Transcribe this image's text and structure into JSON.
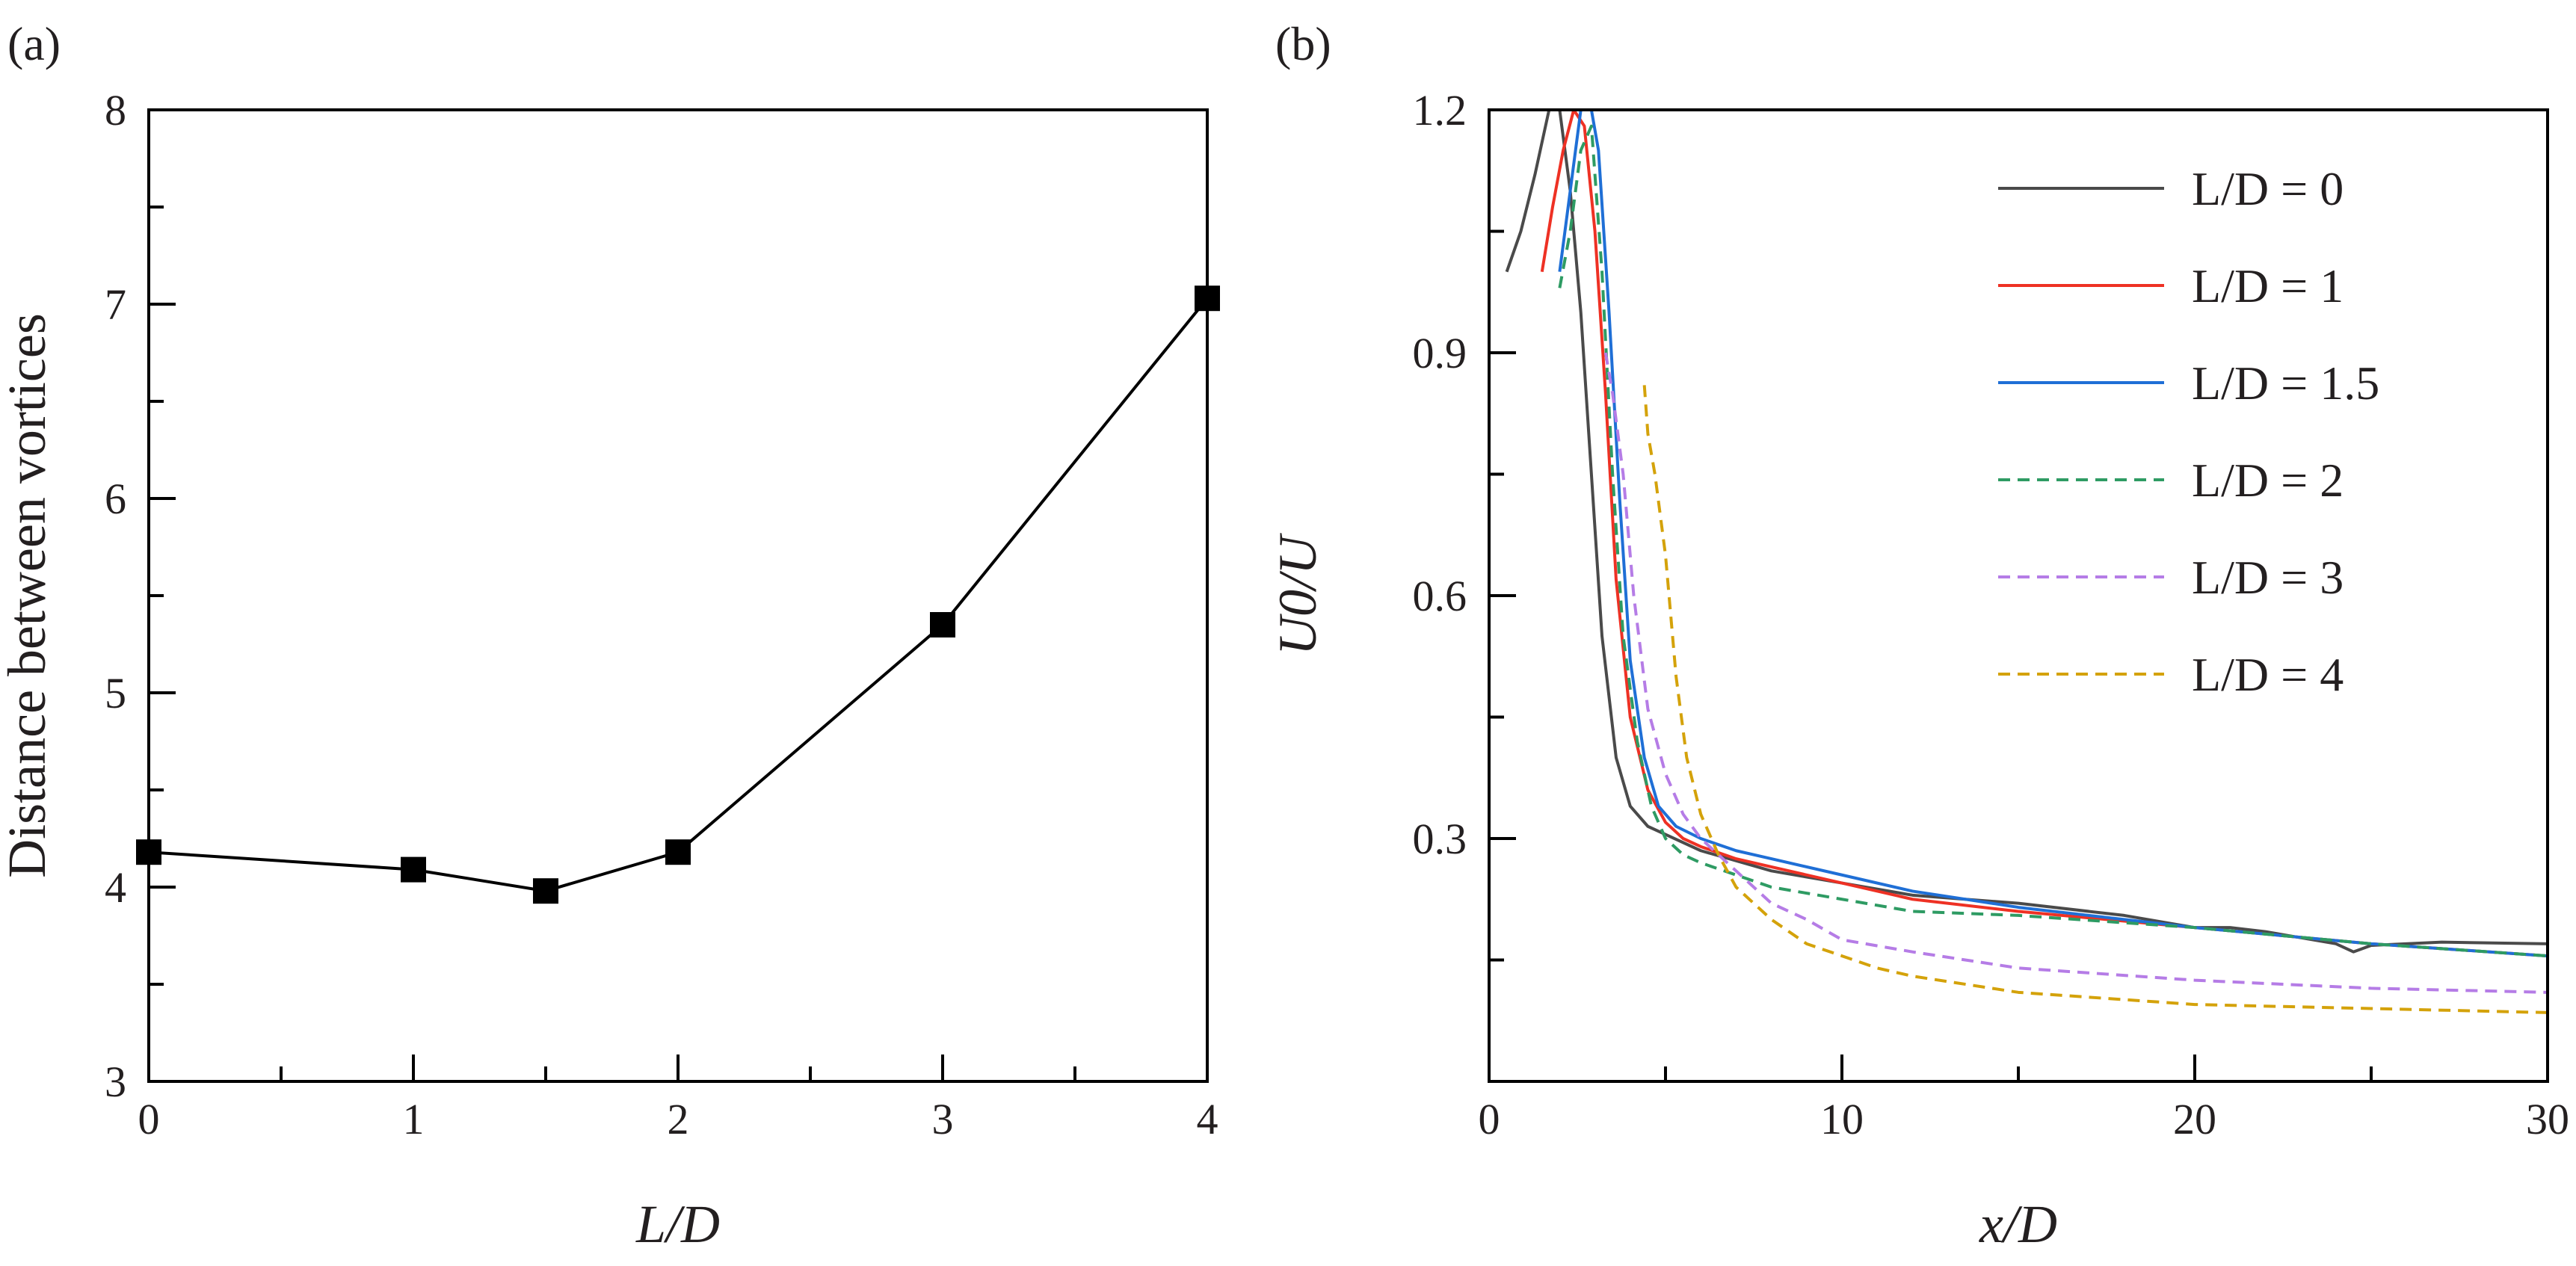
{
  "chart_data": [
    {
      "panel_label": "(a)",
      "type": "line",
      "xlabel": "L/D",
      "ylabel": "Distance between vortices",
      "xlim": [
        0,
        4
      ],
      "ylim": [
        3,
        8
      ],
      "x_ticks": [
        "0",
        "1",
        "2",
        "3",
        "4"
      ],
      "y_ticks": [
        "3",
        "4",
        "5",
        "6",
        "7",
        "8"
      ],
      "grid": false,
      "marker": "filled-square",
      "series": [
        {
          "x": [
            0,
            1,
            1.5,
            2,
            3,
            4
          ],
          "y": [
            4.18,
            4.09,
            3.98,
            4.18,
            5.35,
            7.03
          ],
          "color": "#000000"
        }
      ]
    },
    {
      "panel_label": "(b)",
      "type": "line",
      "xlabel": "x/D",
      "ylabel": "U0/U",
      "xlim": [
        0,
        30
      ],
      "ylim": [
        0,
        1.2
      ],
      "x_ticks": [
        "0",
        "10",
        "20",
        "30"
      ],
      "y_ticks": [
        "0.3",
        "0.6",
        "0.9",
        "1.2"
      ],
      "grid": false,
      "legend_position": "top-right",
      "series": [
        {
          "name": "L/D = 0",
          "color": "#4a4a4a",
          "dash": "solid",
          "x": [
            0.5,
            0.9,
            1.3,
            1.7,
            2.0,
            2.3,
            2.6,
            2.9,
            3.2,
            3.6,
            4.0,
            4.5,
            5.0,
            6.0,
            8.0,
            10,
            12,
            15,
            18,
            20,
            21,
            22,
            24,
            24.5,
            25,
            27,
            30
          ],
          "y": [
            1.0,
            1.05,
            1.12,
            1.2,
            1.2,
            1.1,
            0.95,
            0.75,
            0.55,
            0.4,
            0.34,
            0.315,
            0.305,
            0.285,
            0.26,
            0.245,
            0.23,
            0.22,
            0.205,
            0.19,
            0.19,
            0.185,
            0.17,
            0.16,
            0.168,
            0.172,
            0.17
          ]
        },
        {
          "name": "L/D = 1",
          "color": "#ee3124",
          "dash": "solid",
          "x": [
            1.5,
            1.8,
            2.1,
            2.4,
            2.7,
            3.0,
            3.3,
            3.6,
            4.0,
            4.5,
            5.0,
            5.5,
            6.0,
            7.0,
            8.0,
            10,
            12,
            15,
            20,
            25,
            30
          ],
          "y": [
            1.0,
            1.08,
            1.15,
            1.2,
            1.18,
            1.05,
            0.85,
            0.62,
            0.45,
            0.36,
            0.32,
            0.3,
            0.29,
            0.275,
            0.265,
            0.245,
            0.225,
            0.21,
            0.19,
            0.17,
            0.155
          ]
        },
        {
          "name": "L/D = 1.5",
          "color": "#1f6fd6",
          "dash": "solid",
          "x": [
            2.0,
            2.3,
            2.6,
            2.9,
            3.1,
            3.4,
            3.7,
            4.0,
            4.4,
            4.8,
            5.3,
            6.0,
            7.0,
            8.0,
            10,
            12,
            15,
            20,
            25,
            30
          ],
          "y": [
            1.0,
            1.1,
            1.2,
            1.2,
            1.15,
            0.95,
            0.72,
            0.52,
            0.4,
            0.34,
            0.315,
            0.3,
            0.285,
            0.275,
            0.255,
            0.235,
            0.215,
            0.19,
            0.17,
            0.155
          ]
        },
        {
          "name": "L/D = 2",
          "color": "#2e9b63",
          "dash": "dashed",
          "x": [
            2.0,
            2.3,
            2.6,
            2.9,
            3.2,
            3.5,
            3.8,
            4.2,
            4.6,
            5.0,
            5.5,
            6.0,
            7.0,
            8.0,
            10,
            12,
            15,
            20,
            25,
            30
          ],
          "y": [
            0.98,
            1.05,
            1.15,
            1.18,
            1.0,
            0.75,
            0.55,
            0.42,
            0.34,
            0.3,
            0.28,
            0.27,
            0.255,
            0.24,
            0.225,
            0.21,
            0.205,
            0.19,
            0.17,
            0.155
          ]
        },
        {
          "name": "L/D = 3",
          "color": "#b57ce6",
          "dash": "dashed",
          "x": [
            3.3,
            3.5,
            3.8,
            4.1,
            4.5,
            5.0,
            5.5,
            6.0,
            6.5,
            7.0,
            8.0,
            9.0,
            10,
            12,
            15,
            20,
            25,
            30
          ],
          "y": [
            0.9,
            0.85,
            0.75,
            0.6,
            0.46,
            0.38,
            0.33,
            0.3,
            0.28,
            0.26,
            0.22,
            0.2,
            0.175,
            0.16,
            0.14,
            0.125,
            0.115,
            0.11
          ]
        },
        {
          "name": "L/D = 4",
          "color": "#d4a20a",
          "dash": "dashed",
          "x": [
            4.4,
            4.5,
            4.7,
            5.0,
            5.3,
            5.6,
            6.0,
            6.5,
            7.0,
            8.0,
            9.0,
            10,
            11,
            12,
            15,
            20,
            25,
            30
          ],
          "y": [
            0.86,
            0.8,
            0.75,
            0.65,
            0.5,
            0.4,
            0.33,
            0.28,
            0.24,
            0.2,
            0.17,
            0.155,
            0.14,
            0.13,
            0.11,
            0.095,
            0.09,
            0.085
          ]
        }
      ]
    }
  ]
}
